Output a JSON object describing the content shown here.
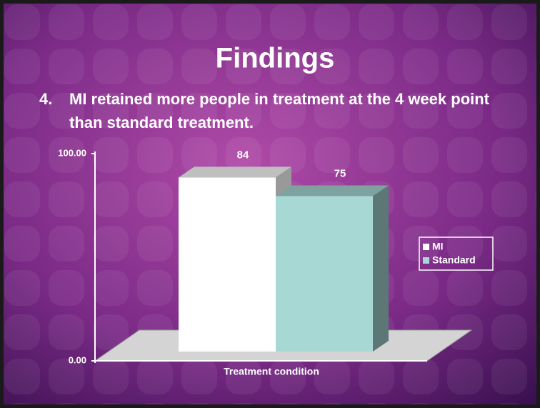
{
  "title": "Findings",
  "bullet": {
    "number": "4.",
    "text": "MI retained more people in treatment at the 4 week point than standard treatment."
  },
  "chart_data": {
    "type": "bar3d",
    "categories": [
      null
    ],
    "xlabel": "Treatment condition",
    "series": [
      {
        "name": "MI",
        "color": "#ffffff",
        "values": [
          84
        ]
      },
      {
        "name": "Standard",
        "color": "#a8d8d4",
        "values": [
          75
        ]
      }
    ],
    "ylim": [
      0,
      100
    ],
    "yticks": [
      {
        "value": 0,
        "label": "0.00"
      },
      {
        "value": 100,
        "label": "100.00"
      }
    ],
    "legend": "right"
  }
}
